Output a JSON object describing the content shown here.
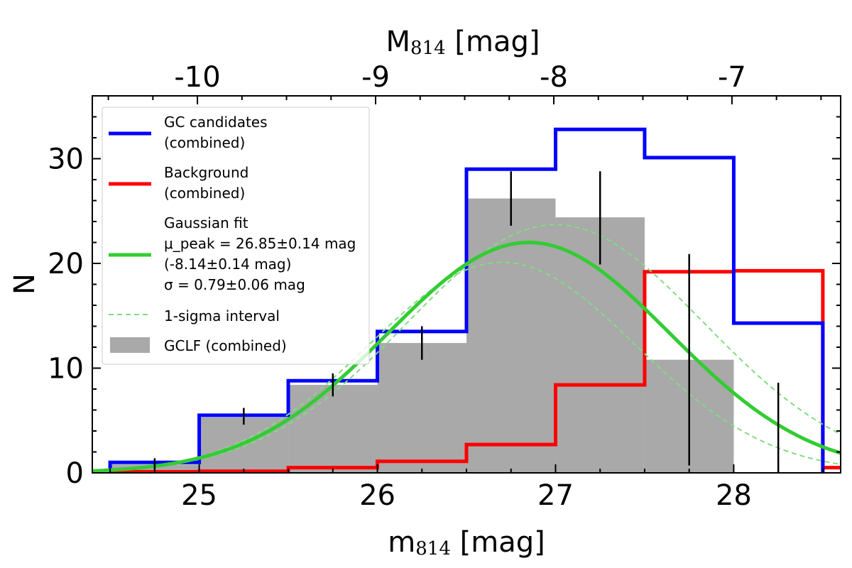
{
  "chart_data": {
    "type": "histogram",
    "xlabel": "m",
    "xlabel_sub": "814",
    "xlabel_unit": " [mag]",
    "top_xlabel": "M",
    "top_xlabel_sub": "814",
    "top_xlabel_unit": " [mag]",
    "ylabel": "N",
    "xlim": [
      24.4,
      28.6
    ],
    "ylim": [
      0,
      36
    ],
    "x_ticks": [
      25,
      26,
      27,
      28
    ],
    "x_tick_labels": [
      "25",
      "26",
      "27",
      "28"
    ],
    "y_ticks": [
      0,
      10,
      20,
      30
    ],
    "y_tick_labels": [
      "0",
      "10",
      "20",
      "30"
    ],
    "top_x_ticks": [
      -10,
      -9,
      -8,
      -7
    ],
    "top_x_tick_labels": [
      "-10",
      "-9",
      "-8",
      "-7"
    ],
    "distance_modulus": 34.99,
    "bin_edges": [
      24.5,
      25.0,
      25.5,
      26.0,
      26.5,
      27.0,
      27.5,
      28.0,
      28.5
    ],
    "series": [
      {
        "name": "GC candidates (combined)",
        "color": "#0000ff",
        "style": "step",
        "values": [
          1.0,
          5.5,
          8.8,
          13.5,
          29.0,
          32.8,
          30.1,
          14.3
        ]
      },
      {
        "name": "Background (combined)",
        "color": "#ff0000",
        "style": "step",
        "values": [
          0.1,
          0.15,
          0.5,
          1.1,
          2.7,
          8.4,
          19.2,
          19.3
        ],
        "tail_value": 0.5
      },
      {
        "name": "GCLF (combined)",
        "color": "#a9a9a9",
        "style": "bars",
        "values": [
          0.8,
          5.3,
          8.4,
          12.4,
          26.2,
          24.4,
          10.8,
          0
        ],
        "errors": [
          {
            "x": 24.75,
            "low": 0.2,
            "high": 1.4
          },
          {
            "x": 25.25,
            "low": 4.6,
            "high": 6.2
          },
          {
            "x": 25.75,
            "low": 7.3,
            "high": 9.5
          },
          {
            "x": 26.25,
            "low": 10.8,
            "high": 14.0
          },
          {
            "x": 26.75,
            "low": 23.6,
            "high": 28.8
          },
          {
            "x": 27.25,
            "low": 19.9,
            "high": 28.8
          },
          {
            "x": 27.75,
            "low": 0.7,
            "high": 20.9
          },
          {
            "x": 28.25,
            "low": 0.0,
            "high": 8.6
          }
        ]
      },
      {
        "name": "Gaussian fit",
        "color": "#33cc33",
        "style": "gaussian",
        "mu": 26.85,
        "sigma": 0.79,
        "amplitude": 22.0
      },
      {
        "name": "1-sigma interval",
        "color": "#80dd80",
        "style": "gaussian-band",
        "upper": {
          "mu": 27.0,
          "sigma": 0.83,
          "amplitude": 23.7
        },
        "lower": {
          "mu": 26.7,
          "sigma": 0.75,
          "amplitude": 20.1
        }
      }
    ],
    "legend": {
      "placement": "top-left",
      "entries": [
        {
          "lines": [
            "GC candidates",
            "(combined)"
          ],
          "color": "#0000ff",
          "kind": "line"
        },
        {
          "lines": [
            "Background",
            "(combined)"
          ],
          "color": "#ff0000",
          "kind": "line"
        },
        {
          "lines": [
            "Gaussian fit",
            "μ_peak = 26.85±0.14 mag",
            "(-8.14±0.14 mag)",
            "σ = 0.79±0.06 mag"
          ],
          "color": "#33cc33",
          "kind": "line"
        },
        {
          "lines": [
            "1-sigma interval"
          ],
          "color": "#80dd80",
          "kind": "dashed"
        },
        {
          "lines": [
            "GCLF (combined)"
          ],
          "color": "#a9a9a9",
          "kind": "patch"
        }
      ]
    }
  }
}
